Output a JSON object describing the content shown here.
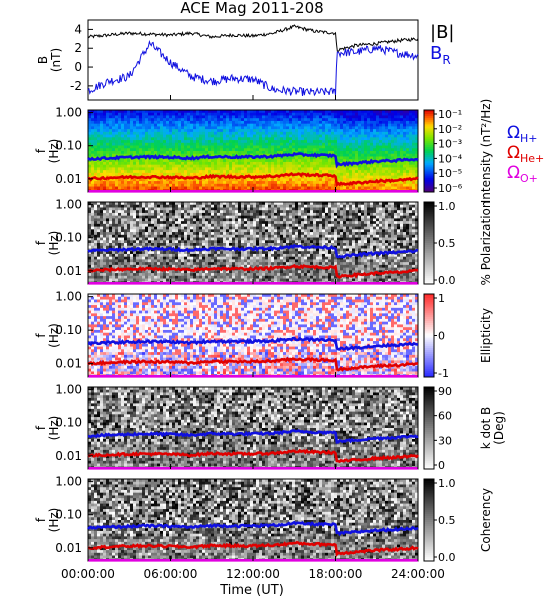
{
  "title": "ACE Mag 2011-208",
  "xlabel": "Time (UT)",
  "x_ticks": [
    "00:00:00",
    "06:00:00",
    "12:00:00",
    "18:00:00",
    "24:00:00"
  ],
  "colors": {
    "B_total": "#000000",
    "B_R": "#1010e0",
    "H_plus": "#1010e0",
    "He_plus": "#e00000",
    "O_plus": "#e000e0"
  },
  "chart_data": [
    {
      "type": "line",
      "panel": "B",
      "ylabel": "B",
      "yunit": "(nT)",
      "yticks": [
        "4",
        "2",
        "0",
        "-2"
      ],
      "ylim": [
        -3.5,
        5
      ],
      "legend": [
        "|B|",
        "B_R"
      ],
      "legend_text": {
        "B": "|B|",
        "BR_main": "B",
        "BR_sub": "R"
      },
      "x_hours": [
        0,
        1.5,
        3,
        4.5,
        6,
        7.5,
        9,
        10.5,
        12,
        13.5,
        15,
        16.5,
        18,
        18.1,
        19.5,
        21,
        22.5,
        24
      ],
      "series": [
        {
          "name": "|B|",
          "values": [
            3.2,
            3.4,
            3.6,
            3.5,
            3.4,
            3.6,
            3.2,
            3.4,
            3.3,
            3.6,
            4.3,
            3.8,
            3.6,
            1.8,
            2.3,
            2.5,
            2.8,
            3.0
          ]
        },
        {
          "name": "B_R",
          "values": [
            -2.5,
            -1.5,
            -1.0,
            2.5,
            0.5,
            -1.0,
            -1.5,
            -1.2,
            -1.3,
            -2.4,
            -2.6,
            -2.7,
            -2.6,
            1.5,
            1.6,
            2.0,
            1.5,
            1.2
          ]
        }
      ]
    },
    {
      "type": "heatmap",
      "panel": "Intensity",
      "ylabel": "f",
      "yunit": "(Hz)",
      "yticks": [
        "1.00",
        "0.10",
        "0.01"
      ],
      "ylim": [
        0.004,
        1.2
      ],
      "yscale": "log",
      "colorbar": {
        "label": "Intensity (nT²/Hz)",
        "ticks": [
          "10⁻¹",
          "10⁻²",
          "10⁻³",
          "10⁻⁴",
          "10⁻⁵",
          "10⁻⁶"
        ],
        "log": true
      },
      "colormap": "rainbow"
    },
    {
      "type": "heatmap",
      "panel": "Polarization",
      "ylabel": "f",
      "yunit": "(Hz)",
      "yticks": [
        "1.00",
        "0.10",
        "0.01"
      ],
      "colorbar": {
        "label": "% Polarization",
        "ticks": [
          "1.0",
          "0.5",
          "0.0"
        ]
      },
      "colormap": "gray"
    },
    {
      "type": "heatmap",
      "panel": "Ellipticity",
      "ylabel": "f",
      "yunit": "(Hz)",
      "yticks": [
        "1.00",
        "0.10",
        "0.01"
      ],
      "colorbar": {
        "label": "Ellipticity",
        "ticks": [
          "1",
          "0",
          "-1"
        ]
      },
      "colormap": "blue-white-red"
    },
    {
      "type": "heatmap",
      "panel": "k dot B",
      "ylabel": "f",
      "yunit": "(Hz)",
      "yticks": [
        "1.00",
        "0.10",
        "0.01"
      ],
      "colorbar": {
        "label": "k dot B",
        "unit": "(Deg)",
        "ticks": [
          "90",
          "60",
          "30",
          "0"
        ]
      },
      "colormap": "gray"
    },
    {
      "type": "heatmap",
      "panel": "Coherency",
      "ylabel": "f",
      "yunit": "(Hz)",
      "yticks": [
        "1.00",
        "0.10",
        "0.01"
      ],
      "colorbar": {
        "label": "Coherency",
        "ticks": [
          "1.0",
          "0.5",
          "0.0"
        ]
      },
      "colormap": "gray"
    }
  ],
  "gyrofrequency_lines": {
    "x_hours": [
      0,
      2,
      4,
      6,
      7.5,
      9,
      10.5,
      12,
      13.5,
      15,
      16.5,
      18,
      18.1,
      19.5,
      21,
      22.5,
      24
    ],
    "H_plus_hz": [
      0.04,
      0.043,
      0.046,
      0.045,
      0.042,
      0.047,
      0.046,
      0.046,
      0.048,
      0.055,
      0.052,
      0.05,
      0.027,
      0.03,
      0.034,
      0.036,
      0.04
    ],
    "He_plus_hz": [
      0.01,
      0.011,
      0.0115,
      0.0112,
      0.0105,
      0.0118,
      0.0115,
      0.0115,
      0.012,
      0.0138,
      0.013,
      0.0125,
      0.0068,
      0.0075,
      0.0085,
      0.009,
      0.01
    ],
    "O_plus_hz": [
      0.0025,
      0.0027,
      0.0029,
      0.0028,
      0.0026,
      0.0029,
      0.0029,
      0.0029,
      0.003,
      0.0034,
      0.0032,
      0.0031,
      0.0017,
      0.0019,
      0.0021,
      0.0022,
      0.0025
    ]
  },
  "legend_labels": {
    "omega": "Ω",
    "H_plus": "H+",
    "He_plus": "He+",
    "O_plus": "O+"
  }
}
